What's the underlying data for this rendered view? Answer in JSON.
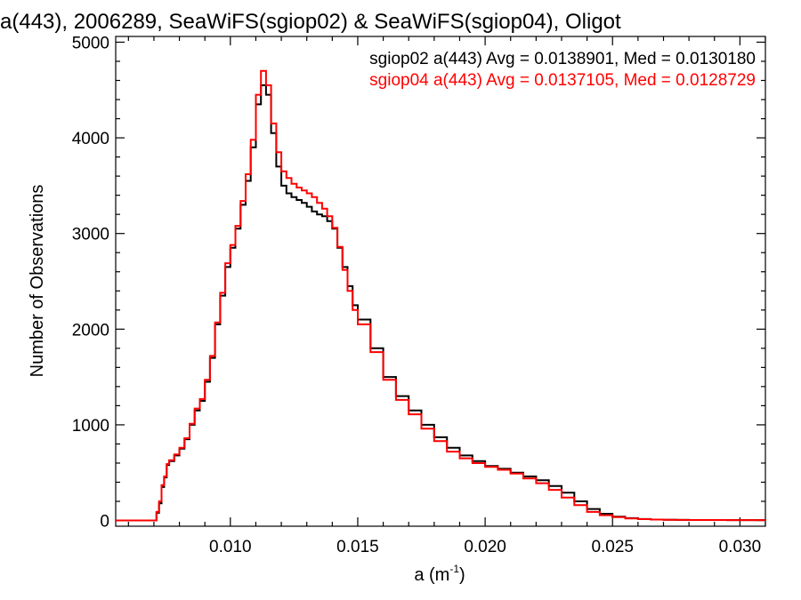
{
  "chart_data": {
    "type": "line",
    "title": "a(443), 2006289, SeaWiFS(sgiop02) & SeaWiFS(sgiop04), Oligot",
    "xlabel": "a (m",
    "xlabel_sup": "-1",
    "xlabel_close": ")",
    "ylabel": "Number of Observations",
    "xlim": [
      0.0055,
      0.031
    ],
    "ylim": [
      -60,
      5060
    ],
    "xticks": [
      0.01,
      0.015,
      0.02,
      0.025,
      0.03
    ],
    "xtick_labels": [
      "0.010",
      "0.015",
      "0.020",
      "0.025",
      "0.030"
    ],
    "yticks": [
      0,
      1000,
      2000,
      3000,
      4000,
      5000
    ],
    "ytick_labels": [
      "0",
      "1000",
      "2000",
      "3000",
      "4000",
      "5000"
    ],
    "x_minor_step": 0.001,
    "y_minor_step": 200,
    "grid": false,
    "legend_position": "top-right",
    "series": [
      {
        "name": "sgiop02",
        "legend": "sgiop02 a(443) Avg = 0.0138901, Med = 0.0130180",
        "color": "#000000",
        "x": [
          0.0055,
          0.006,
          0.0065,
          0.0069,
          0.0071,
          0.0072,
          0.0073,
          0.0074,
          0.0075,
          0.0076,
          0.0078,
          0.008,
          0.0082,
          0.0084,
          0.0086,
          0.0088,
          0.009,
          0.0092,
          0.0094,
          0.0096,
          0.0098,
          0.01,
          0.0102,
          0.0104,
          0.0106,
          0.0108,
          0.011,
          0.0112,
          0.0114,
          0.0116,
          0.0118,
          0.012,
          0.0122,
          0.0124,
          0.0126,
          0.0128,
          0.013,
          0.0132,
          0.0134,
          0.0136,
          0.0138,
          0.014,
          0.0142,
          0.0144,
          0.0146,
          0.0148,
          0.015,
          0.0155,
          0.016,
          0.0165,
          0.017,
          0.0175,
          0.018,
          0.0185,
          0.019,
          0.0195,
          0.02,
          0.0205,
          0.021,
          0.0215,
          0.022,
          0.0225,
          0.023,
          0.0235,
          0.024,
          0.0245,
          0.025,
          0.0255,
          0.026,
          0.0265,
          0.027,
          0.0275,
          0.028,
          0.0285,
          0.029,
          0.0295,
          0.03,
          0.0305,
          0.031
        ],
        "y": [
          0,
          0,
          0,
          0,
          80,
          180,
          350,
          450,
          580,
          620,
          680,
          750,
          850,
          1000,
          1150,
          1250,
          1450,
          1700,
          2050,
          2350,
          2650,
          2850,
          3050,
          3300,
          3550,
          3900,
          4350,
          4550,
          4450,
          4050,
          3700,
          3500,
          3420,
          3380,
          3350,
          3320,
          3280,
          3230,
          3200,
          3180,
          3130,
          3050,
          2850,
          2650,
          2450,
          2250,
          2100,
          1800,
          1500,
          1300,
          1150,
          1000,
          870,
          760,
          680,
          620,
          570,
          540,
          500,
          460,
          420,
          360,
          290,
          200,
          120,
          70,
          40,
          25,
          15,
          10,
          8,
          6,
          5,
          5,
          5,
          4,
          4,
          4,
          3
        ]
      },
      {
        "name": "sgiop04",
        "legend": "sgiop04 a(443) Avg = 0.0137105, Med = 0.0128729",
        "color": "#ff0000",
        "x": [
          0.0055,
          0.006,
          0.0065,
          0.0069,
          0.0071,
          0.0072,
          0.0073,
          0.0074,
          0.0075,
          0.0076,
          0.0078,
          0.008,
          0.0082,
          0.0084,
          0.0086,
          0.0088,
          0.009,
          0.0092,
          0.0094,
          0.0096,
          0.0098,
          0.01,
          0.0102,
          0.0104,
          0.0106,
          0.0108,
          0.011,
          0.0112,
          0.0114,
          0.0116,
          0.0118,
          0.012,
          0.0122,
          0.0124,
          0.0126,
          0.0128,
          0.013,
          0.0132,
          0.0134,
          0.0136,
          0.0138,
          0.014,
          0.0142,
          0.0144,
          0.0146,
          0.0148,
          0.015,
          0.0155,
          0.016,
          0.0165,
          0.017,
          0.0175,
          0.018,
          0.0185,
          0.019,
          0.0195,
          0.02,
          0.0205,
          0.021,
          0.0215,
          0.022,
          0.0225,
          0.023,
          0.0235,
          0.024,
          0.0245,
          0.025,
          0.0255,
          0.026,
          0.0265,
          0.027,
          0.0275,
          0.028,
          0.0285,
          0.029,
          0.0295,
          0.03,
          0.0305,
          0.031
        ],
        "y": [
          0,
          0,
          0,
          0,
          90,
          200,
          370,
          460,
          590,
          630,
          690,
          760,
          860,
          1010,
          1170,
          1270,
          1470,
          1720,
          2070,
          2380,
          2690,
          2880,
          3080,
          3340,
          3620,
          3980,
          4450,
          4700,
          4550,
          4150,
          3850,
          3650,
          3580,
          3520,
          3480,
          3450,
          3420,
          3380,
          3320,
          3260,
          3180,
          3060,
          2860,
          2620,
          2400,
          2200,
          2050,
          1760,
          1470,
          1260,
          1110,
          960,
          830,
          720,
          650,
          600,
          560,
          530,
          490,
          440,
          390,
          320,
          240,
          160,
          90,
          55,
          35,
          22,
          14,
          10,
          8,
          6,
          5,
          5,
          5,
          4,
          4,
          4,
          3
        ]
      }
    ]
  }
}
